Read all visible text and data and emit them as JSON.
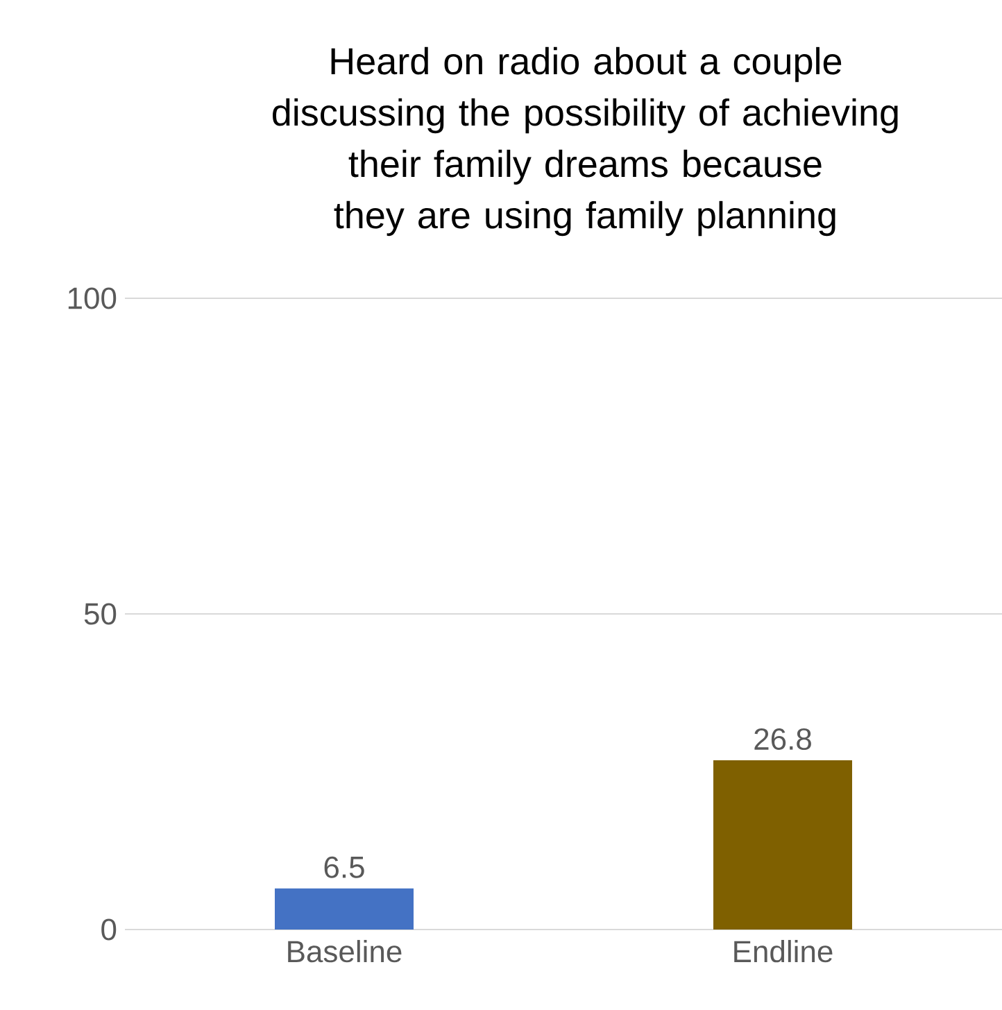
{
  "chart_data": {
    "type": "bar",
    "title": "Heard on radio about a couple discussing the possibility of achieving their family dreams because they are using family planning",
    "categories": [
      "Baseline",
      "Endline"
    ],
    "values": [
      6.5,
      26.8
    ],
    "colors": [
      "#4472c4",
      "#7f6000"
    ],
    "ylim": [
      0,
      100
    ],
    "yticks": [
      0,
      50,
      100
    ],
    "grid": "y",
    "data_labels": true
  }
}
